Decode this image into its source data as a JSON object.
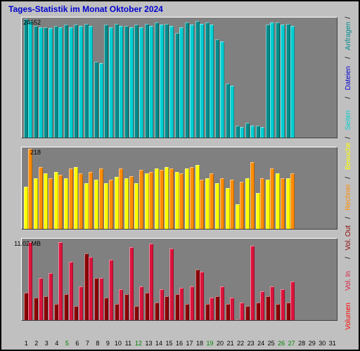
{
  "title": "Tages-Statistik im Monat Oktober 2024",
  "title_color": "#0000cd",
  "background_color": "#c0c0c0",
  "panel_background": "#808080",
  "days": [
    1,
    2,
    3,
    4,
    5,
    6,
    7,
    8,
    9,
    10,
    11,
    12,
    13,
    14,
    15,
    16,
    17,
    18,
    19,
    20,
    21,
    22,
    23,
    24,
    25,
    26,
    27,
    28,
    29,
    30,
    31
  ],
  "panel1": {
    "ylabel": "24652",
    "height_pct": 38,
    "series_colors": [
      "#008b8b",
      "#00ced1"
    ],
    "data": [
      [
        99,
        97
      ],
      [
        93,
        92
      ],
      [
        92,
        91
      ],
      [
        93,
        92
      ],
      [
        94,
        92
      ],
      [
        94,
        93
      ],
      [
        95,
        93
      ],
      [
        63,
        62
      ],
      [
        94,
        92
      ],
      [
        95,
        93
      ],
      [
        93,
        92
      ],
      [
        94,
        92
      ],
      [
        95,
        93
      ],
      [
        96,
        94
      ],
      [
        95,
        93
      ],
      [
        87,
        92
      ],
      [
        96,
        94
      ],
      [
        97,
        95
      ],
      [
        96,
        94
      ],
      [
        82,
        80
      ],
      [
        45,
        43
      ],
      [
        10,
        9
      ],
      [
        12,
        10
      ],
      [
        10,
        9
      ],
      [
        94,
        96
      ],
      [
        96,
        94
      ],
      [
        95,
        93
      ]
    ]
  },
  "panel2": {
    "ylabel": "218",
    "height_pct": 26,
    "series_colors": [
      "#ffff00",
      "#ff8c00"
    ],
    "data": [
      [
        52,
        98
      ],
      [
        62,
        76
      ],
      [
        68,
        62
      ],
      [
        70,
        66
      ],
      [
        62,
        74
      ],
      [
        76,
        68
      ],
      [
        56,
        70
      ],
      [
        60,
        74
      ],
      [
        56,
        60
      ],
      [
        64,
        74
      ],
      [
        62,
        65
      ],
      [
        56,
        72
      ],
      [
        68,
        70
      ],
      [
        74,
        72
      ],
      [
        76,
        74
      ],
      [
        70,
        68
      ],
      [
        74,
        76
      ],
      [
        78,
        60
      ],
      [
        62,
        68
      ],
      [
        56,
        62
      ],
      [
        50,
        60
      ],
      [
        30,
        58
      ],
      [
        62,
        82
      ],
      [
        44,
        62
      ],
      [
        60,
        74
      ],
      [
        68,
        62
      ],
      [
        62,
        68
      ]
    ]
  },
  "panel3": {
    "ylabel": "11.02 MB",
    "height_pct": 26,
    "series_colors": [
      "#8b0000",
      "#dc143c"
    ],
    "data": [
      [
        34,
        96
      ],
      [
        28,
        52
      ],
      [
        30,
        58
      ],
      [
        20,
        96
      ],
      [
        32,
        72
      ],
      [
        18,
        42
      ],
      [
        82,
        78
      ],
      [
        52,
        52
      ],
      [
        28,
        74
      ],
      [
        20,
        38
      ],
      [
        32,
        90
      ],
      [
        18,
        42
      ],
      [
        34,
        94
      ],
      [
        22,
        38
      ],
      [
        30,
        88
      ],
      [
        32,
        40
      ],
      [
        20,
        42
      ],
      [
        62,
        60
      ],
      [
        20,
        28
      ],
      [
        30,
        42
      ],
      [
        20,
        28
      ],
      [
        0,
        22
      ],
      [
        18,
        92
      ],
      [
        22,
        36
      ],
      [
        30,
        42
      ],
      [
        20,
        38
      ],
      [
        22,
        48
      ]
    ]
  },
  "xaxis_colors": [
    "#000000",
    "#000000",
    "#000000",
    "#000000",
    "#008000",
    "#000000",
    "#000000",
    "#000000",
    "#000000",
    "#000000",
    "#000000",
    "#008000",
    "#000000",
    "#000000",
    "#000000",
    "#000000",
    "#000000",
    "#000000",
    "#008000",
    "#000000",
    "#000000",
    "#000000",
    "#000000",
    "#000000",
    "#000000",
    "#008000",
    "#008000",
    "#000000",
    "#000000",
    "#000000",
    "#000000"
  ],
  "legend": [
    {
      "label": "Anfragen",
      "color": "#008b8b"
    },
    {
      "label": "Dateien",
      "color": "#0000cd"
    },
    {
      "label": "Seiten",
      "color": "#00ced1"
    },
    {
      "label": "Besuche",
      "color": "#ffff00"
    },
    {
      "label": "Rechner",
      "color": "#ff8c00"
    },
    {
      "label": "Vol. Out",
      "color": "#8b0000"
    },
    {
      "label": "Vol. In",
      "color": "#dc143c"
    },
    {
      "label": "Volumen",
      "color": "#ff0000"
    }
  ],
  "legend_separator": " / "
}
